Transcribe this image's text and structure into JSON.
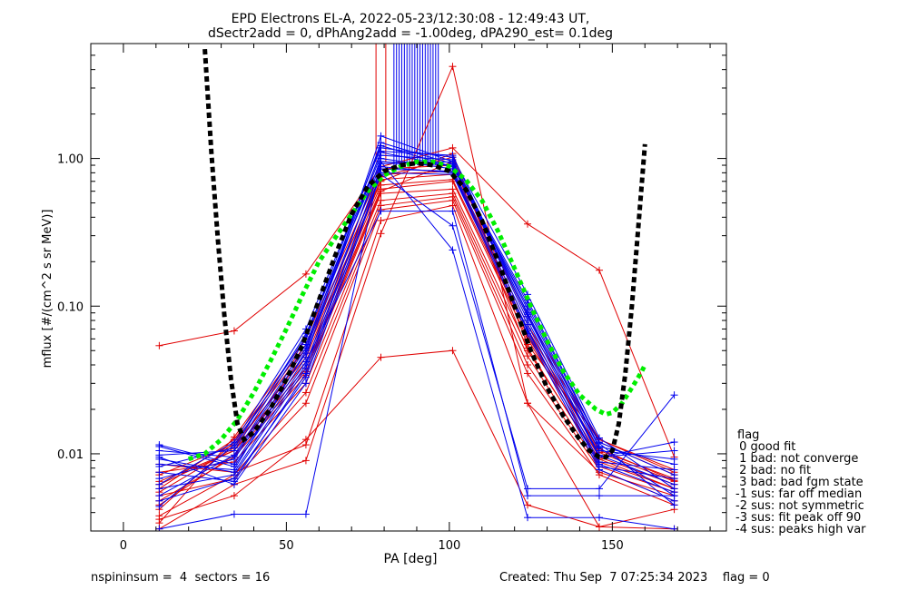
{
  "chart_data": {
    "type": "line",
    "title_line1": "EPD Electrons EL-A, 2022-05-23/12:30:08 - 12:49:43 UT,",
    "title_line2": "dSectr2add = 0, dPhAng2add = -1.00deg, dPA290_est=   0.1deg",
    "xlabel": "PA [deg]",
    "ylabel": "mflux [#/(cm^2 s sr MeV)]",
    "xlim": [
      -10,
      185
    ],
    "ylim": [
      0.003,
      6.0
    ],
    "yscale": "log",
    "xticks": [
      0,
      50,
      100,
      150
    ],
    "xtick_labels": [
      "0",
      "50",
      "100",
      "150"
    ],
    "yticks": [
      0.01,
      0.1,
      1.0
    ],
    "ytick_labels": [
      "0.01",
      "0.10",
      "1.00"
    ],
    "pa_bins": [
      11,
      34,
      56,
      79,
      101,
      124,
      146,
      169
    ],
    "colors": {
      "red": "#e00000",
      "blue": "#0000ee",
      "green": "#00ee00",
      "black": "#000000"
    },
    "red_series": [
      [
        0.0085,
        0.0075,
        0.0115,
        0.38,
        0.48,
        0.022,
        0.0075,
        0.0052
      ],
      [
        0.0065,
        0.0105,
        0.038,
        0.62,
        0.7,
        0.06,
        0.0095,
        0.0062
      ],
      [
        0.0055,
        0.011,
        0.048,
        0.72,
        0.78,
        0.07,
        0.0105,
        0.0068
      ],
      [
        0.0048,
        0.0095,
        0.034,
        0.58,
        0.62,
        0.052,
        0.0088,
        0.0058
      ],
      [
        0.0042,
        0.012,
        0.052,
        0.78,
        0.82,
        0.075,
        0.012,
        0.0072
      ],
      [
        0.0075,
        0.0088,
        0.03,
        0.52,
        0.58,
        0.046,
        0.0082,
        0.0055
      ],
      [
        0.0038,
        0.0072,
        0.026,
        0.48,
        0.55,
        0.04,
        0.0078,
        0.0048
      ],
      [
        0.0034,
        0.013,
        0.06,
        0.85,
        0.9,
        0.085,
        0.0125,
        0.0075
      ],
      [
        0.0062,
        0.0105,
        0.042,
        0.66,
        0.72,
        0.065,
        0.0102,
        0.0065
      ],
      [
        0.0052,
        0.0068,
        0.022,
        0.45,
        0.52,
        0.035,
        0.0072,
        0.0045
      ],
      [
        0.054,
        0.068,
        0.165,
        0.88,
        1.18,
        0.36,
        0.175,
        0.0095
      ],
      [
        0.0036,
        0.0052,
        0.0125,
        0.045,
        0.05,
        0.0045,
        0.0032,
        0.0031
      ],
      [
        0.0031,
        0.0062,
        0.009,
        0.31,
        4.2,
        0.022,
        0.0032,
        0.0042
      ],
      [
        0.0072,
        0.0115,
        0.045,
        0.7,
        1.08,
        0.055,
        0.0125,
        0.0078
      ],
      [
        0.0045,
        0.0098,
        0.036,
        0.6,
        0.95,
        0.05,
        0.0092,
        0.0058
      ],
      [
        0.0058,
        0.0125,
        0.055,
        0.75,
        1.02,
        0.062,
        0.0108,
        0.0066
      ]
    ],
    "blue_series": [
      [
        0.0115,
        0.0085,
        0.045,
        1.42,
        0.95,
        0.08,
        0.0095,
        0.0105
      ],
      [
        0.0105,
        0.0095,
        0.052,
        1.28,
        0.92,
        0.09,
        0.0105,
        0.0092
      ],
      [
        0.0098,
        0.0105,
        0.06,
        1.1,
        0.88,
        0.1,
        0.0112,
        0.0085
      ],
      [
        0.0092,
        0.0075,
        0.04,
        1.0,
        0.85,
        0.075,
        0.0088,
        0.0078
      ],
      [
        0.0082,
        0.011,
        0.065,
        0.95,
        0.9,
        0.11,
        0.012,
        0.0072
      ],
      [
        0.0075,
        0.0065,
        0.035,
        0.88,
        0.8,
        0.07,
        0.0082,
        0.0068
      ],
      [
        0.0068,
        0.0092,
        0.048,
        0.92,
        0.95,
        0.085,
        0.0098,
        0.0062
      ],
      [
        0.0062,
        0.012,
        0.07,
        1.18,
        1.02,
        0.12,
        0.0128,
        0.0058
      ],
      [
        0.0058,
        0.0072,
        0.038,
        0.85,
        0.82,
        0.068,
        0.0085,
        0.0055
      ],
      [
        0.0052,
        0.0098,
        0.055,
        1.05,
        0.98,
        0.095,
        0.011,
        0.0052
      ],
      [
        0.0048,
        0.0068,
        0.033,
        0.8,
        0.78,
        0.065,
        0.0078,
        0.0048
      ],
      [
        0.0044,
        0.0115,
        0.062,
        1.22,
        0.88,
        0.105,
        0.0118,
        0.0045
      ],
      [
        0.0112,
        0.0082,
        0.042,
        0.44,
        0.44,
        0.0052,
        0.0052,
        0.0052
      ],
      [
        0.0031,
        0.0039,
        0.0039,
        0.95,
        0.24,
        0.0037,
        0.0037,
        0.0031
      ],
      [
        0.0095,
        0.0062,
        0.03,
        0.78,
        0.35,
        0.0058,
        0.0058,
        0.025
      ],
      [
        0.0085,
        0.0078,
        0.05,
        1.12,
        1.05,
        0.088,
        0.0095,
        0.012
      ]
    ],
    "blue_spikes_x": [
      83.0,
      83.8,
      84.6,
      85.4,
      86.2,
      87.0,
      87.8,
      88.6,
      89.4,
      90.2,
      91.0,
      91.8,
      92.6,
      93.4,
      94.2,
      95.0,
      95.8,
      96.6
    ],
    "red_spikes_x": [
      77.5,
      80.5
    ],
    "fit_curve": {
      "name": "black dashed fit",
      "x": [
        25,
        27,
        29,
        31,
        33,
        35,
        37,
        40,
        45,
        50,
        55,
        60,
        65,
        70,
        75,
        80,
        85,
        90,
        95,
        100,
        105,
        110,
        115,
        120,
        125,
        130,
        135,
        140,
        143,
        146,
        148,
        150,
        152,
        154,
        156,
        158,
        160
      ],
      "y": [
        5.5,
        1.1,
        0.28,
        0.085,
        0.032,
        0.016,
        0.0125,
        0.014,
        0.02,
        0.032,
        0.055,
        0.11,
        0.22,
        0.42,
        0.65,
        0.82,
        0.9,
        0.93,
        0.9,
        0.82,
        0.62,
        0.38,
        0.2,
        0.1,
        0.05,
        0.028,
        0.018,
        0.0125,
        0.0105,
        0.0095,
        0.0095,
        0.0105,
        0.016,
        0.035,
        0.1,
        0.35,
        1.25
      ]
    },
    "green_curve": {
      "name": "green dashed fit",
      "x": [
        20,
        25,
        30,
        35,
        40,
        45,
        50,
        55,
        60,
        65,
        70,
        75,
        80,
        85,
        90,
        95,
        100,
        105,
        110,
        115,
        120,
        125,
        130,
        135,
        140,
        145,
        148,
        150,
        153,
        156,
        159,
        160
      ],
      "y": [
        0.0092,
        0.01,
        0.0125,
        0.017,
        0.026,
        0.042,
        0.07,
        0.12,
        0.2,
        0.29,
        0.42,
        0.6,
        0.77,
        0.88,
        0.95,
        0.95,
        0.88,
        0.72,
        0.52,
        0.32,
        0.18,
        0.1,
        0.058,
        0.036,
        0.025,
        0.02,
        0.0185,
        0.019,
        0.022,
        0.028,
        0.036,
        0.04
      ]
    },
    "legend": {
      "title": "flag",
      "entries": [
        " 0 good fit",
        " 1 bad: not converge",
        " 2 bad: no fit",
        " 3 bad: bad fgm state",
        "-1 sus: far off median",
        "-2 sus: not symmetric",
        "-3 sus: fit peak off 90",
        "-4 sus: peaks high var"
      ]
    }
  },
  "footer": {
    "left": "nspininsum =  4  sectors = 16",
    "right": "Created: Thu Sep  7 07:25:34 2023    flag = 0"
  }
}
